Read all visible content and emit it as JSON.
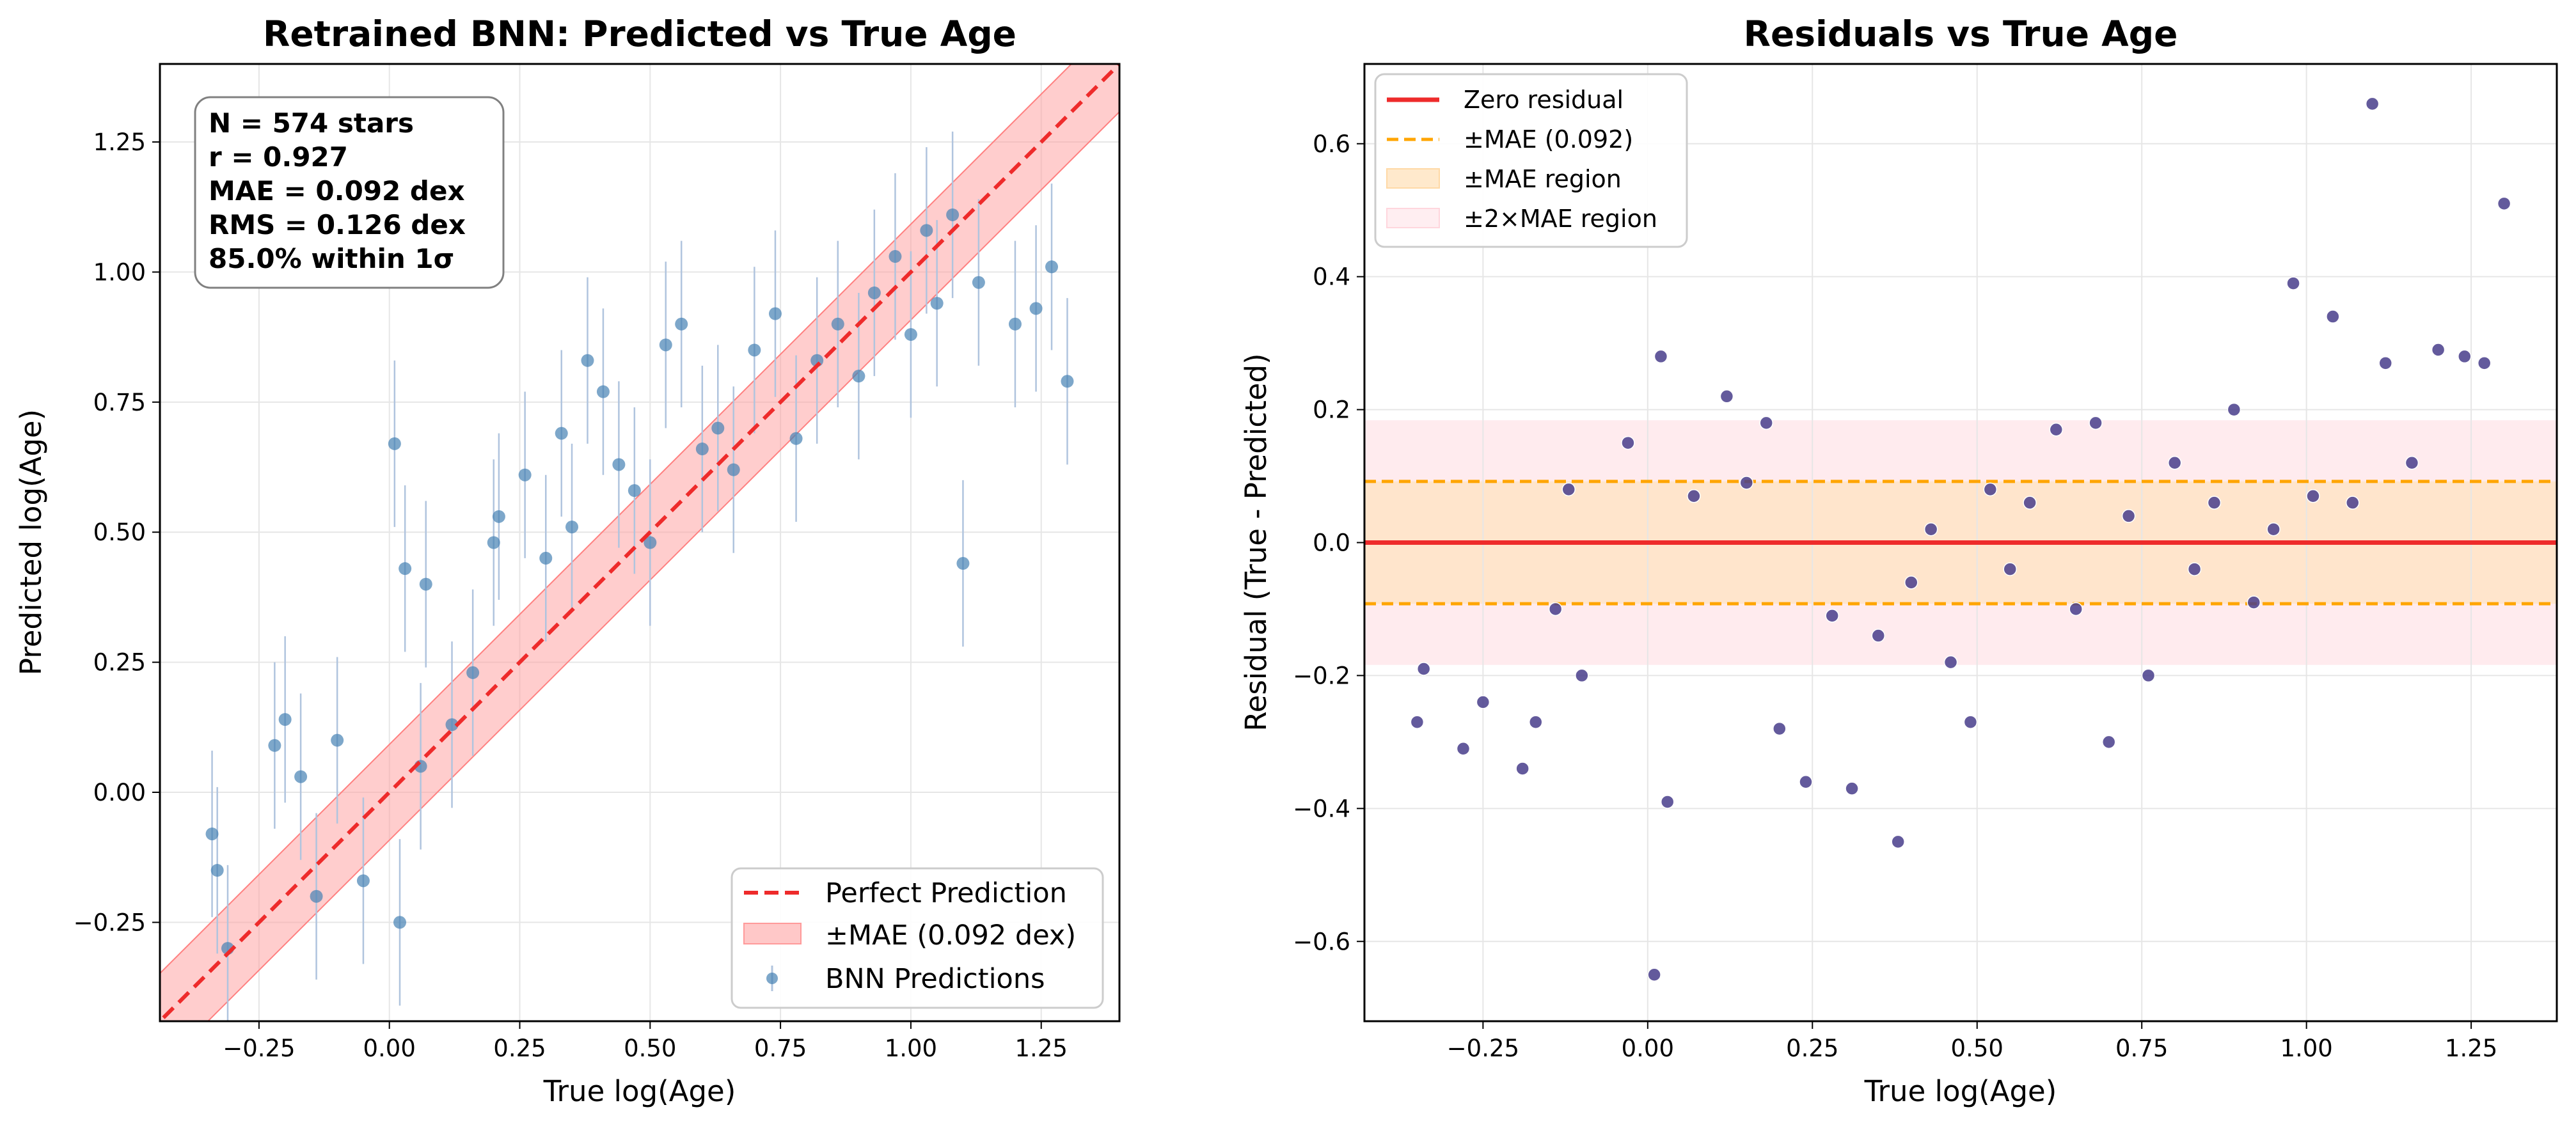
{
  "chart_data": [
    {
      "type": "scatter",
      "title": "Retrained BNN: Predicted vs True Age",
      "xlabel": "True log(Age)",
      "ylabel": "Predicted log(Age)",
      "xlim": [
        -0.44,
        1.4
      ],
      "ylim": [
        -0.44,
        1.4
      ],
      "x_ticks": [
        -0.25,
        0.0,
        0.25,
        0.5,
        0.75,
        1.0,
        1.25
      ],
      "x_tick_labels": [
        "−0.25",
        "0.00",
        "0.25",
        "0.50",
        "0.75",
        "1.00",
        "1.25"
      ],
      "y_ticks": [
        -0.25,
        0.0,
        0.25,
        0.5,
        0.75,
        1.0,
        1.25
      ],
      "y_tick_labels": [
        "−0.25",
        "0.00",
        "0.25",
        "0.50",
        "0.75",
        "1.00",
        "1.25"
      ],
      "grid": true,
      "stats_box": [
        "N = 574 stars",
        "r = 0.927",
        "MAE = 0.092 dex",
        "RMS = 0.126 dex",
        "85.0% within 1σ"
      ],
      "mae": 0.092,
      "legend_position": "lower-right",
      "legend": [
        {
          "label": "Perfect Prediction",
          "style": "dashed-line",
          "color": "#ee2b2b"
        },
        {
          "label": "±MAE (0.092 dex)",
          "style": "band",
          "color": "#ffb3b3"
        },
        {
          "label": "BNN Predictions",
          "style": "marker-errorbar",
          "color": "#4682b4"
        }
      ],
      "point_color": "#4682b4",
      "errorbar_color": "#b0c4de",
      "sample_points": [
        {
          "x": -0.34,
          "y": -0.08
        },
        {
          "x": -0.33,
          "y": -0.15
        },
        {
          "x": -0.31,
          "y": -0.3
        },
        {
          "x": -0.22,
          "y": 0.09
        },
        {
          "x": -0.2,
          "y": 0.14
        },
        {
          "x": -0.17,
          "y": 0.03
        },
        {
          "x": -0.14,
          "y": -0.2
        },
        {
          "x": -0.1,
          "y": 0.1
        },
        {
          "x": -0.05,
          "y": -0.17
        },
        {
          "x": 0.01,
          "y": 0.67
        },
        {
          "x": 0.03,
          "y": 0.43
        },
        {
          "x": 0.07,
          "y": 0.4
        },
        {
          "x": 0.02,
          "y": -0.25
        },
        {
          "x": 0.06,
          "y": 0.05
        },
        {
          "x": 0.12,
          "y": 0.13
        },
        {
          "x": 0.16,
          "y": 0.23
        },
        {
          "x": 0.2,
          "y": 0.48
        },
        {
          "x": 0.21,
          "y": 0.53
        },
        {
          "x": 0.26,
          "y": 0.61
        },
        {
          "x": 0.3,
          "y": 0.45
        },
        {
          "x": 0.33,
          "y": 0.69
        },
        {
          "x": 0.35,
          "y": 0.51
        },
        {
          "x": 0.38,
          "y": 0.83
        },
        {
          "x": 0.41,
          "y": 0.77
        },
        {
          "x": 0.44,
          "y": 0.63
        },
        {
          "x": 0.47,
          "y": 0.58
        },
        {
          "x": 0.5,
          "y": 0.48
        },
        {
          "x": 0.53,
          "y": 0.86
        },
        {
          "x": 0.56,
          "y": 0.9
        },
        {
          "x": 0.6,
          "y": 0.66
        },
        {
          "x": 0.63,
          "y": 0.7
        },
        {
          "x": 0.66,
          "y": 0.62
        },
        {
          "x": 0.7,
          "y": 0.85
        },
        {
          "x": 0.74,
          "y": 0.92
        },
        {
          "x": 0.78,
          "y": 0.68
        },
        {
          "x": 0.82,
          "y": 0.83
        },
        {
          "x": 0.86,
          "y": 0.9
        },
        {
          "x": 0.9,
          "y": 0.8
        },
        {
          "x": 0.93,
          "y": 0.96
        },
        {
          "x": 0.97,
          "y": 1.03
        },
        {
          "x": 1.0,
          "y": 0.88
        },
        {
          "x": 1.03,
          "y": 1.08
        },
        {
          "x": 1.05,
          "y": 0.94
        },
        {
          "x": 1.08,
          "y": 1.11
        },
        {
          "x": 1.1,
          "y": 0.44
        },
        {
          "x": 1.13,
          "y": 0.98
        },
        {
          "x": 1.2,
          "y": 0.9
        },
        {
          "x": 1.24,
          "y": 0.93
        },
        {
          "x": 1.27,
          "y": 1.01
        },
        {
          "x": 1.3,
          "y": 0.79
        }
      ]
    },
    {
      "type": "scatter",
      "title": "Residuals vs True Age",
      "xlabel": "True log(Age)",
      "ylabel": "Residual (True - Predicted)",
      "xlim": [
        -0.43,
        1.38
      ],
      "ylim": [
        -0.72,
        0.72
      ],
      "x_ticks": [
        -0.25,
        0.0,
        0.25,
        0.5,
        0.75,
        1.0,
        1.25
      ],
      "x_tick_labels": [
        "−0.25",
        "0.00",
        "0.25",
        "0.50",
        "0.75",
        "1.00",
        "1.25"
      ],
      "y_ticks": [
        -0.6,
        -0.4,
        -0.2,
        0.0,
        0.2,
        0.4,
        0.6
      ],
      "y_tick_labels": [
        "−0.6",
        "−0.4",
        "−0.2",
        "0.0",
        "0.2",
        "0.4",
        "0.6"
      ],
      "grid": true,
      "mae": 0.092,
      "legend_position": "top-left",
      "legend": [
        {
          "label": "Zero residual",
          "style": "solid-line",
          "color": "#ee2b2b"
        },
        {
          "label": "±MAE (0.092)",
          "style": "dashed-line",
          "color": "#ffa500"
        },
        {
          "label": "±MAE region",
          "style": "band",
          "color": "#ffe3c0"
        },
        {
          "label": "±2×MAE region",
          "style": "band",
          "color": "#ffe6ea"
        }
      ],
      "point_color": "#483d8b",
      "sample_points": [
        {
          "x": -0.35,
          "y": -0.27
        },
        {
          "x": -0.34,
          "y": -0.19
        },
        {
          "x": -0.28,
          "y": -0.31
        },
        {
          "x": -0.25,
          "y": -0.24
        },
        {
          "x": -0.19,
          "y": -0.34
        },
        {
          "x": -0.17,
          "y": -0.27
        },
        {
          "x": -0.14,
          "y": -0.1
        },
        {
          "x": -0.12,
          "y": 0.08
        },
        {
          "x": -0.1,
          "y": -0.2
        },
        {
          "x": -0.03,
          "y": 0.15
        },
        {
          "x": 0.02,
          "y": 0.28
        },
        {
          "x": 0.01,
          "y": -0.65
        },
        {
          "x": 0.03,
          "y": -0.39
        },
        {
          "x": 0.07,
          "y": 0.07
        },
        {
          "x": 0.12,
          "y": 0.22
        },
        {
          "x": 0.15,
          "y": 0.09
        },
        {
          "x": 0.18,
          "y": 0.18
        },
        {
          "x": 0.2,
          "y": -0.28
        },
        {
          "x": 0.24,
          "y": -0.36
        },
        {
          "x": 0.28,
          "y": -0.11
        },
        {
          "x": 0.31,
          "y": -0.37
        },
        {
          "x": 0.35,
          "y": -0.14
        },
        {
          "x": 0.38,
          "y": -0.45
        },
        {
          "x": 0.4,
          "y": -0.06
        },
        {
          "x": 0.43,
          "y": 0.02
        },
        {
          "x": 0.46,
          "y": -0.18
        },
        {
          "x": 0.49,
          "y": -0.27
        },
        {
          "x": 0.52,
          "y": 0.08
        },
        {
          "x": 0.55,
          "y": -0.04
        },
        {
          "x": 0.58,
          "y": 0.06
        },
        {
          "x": 0.62,
          "y": 0.17
        },
        {
          "x": 0.65,
          "y": -0.1
        },
        {
          "x": 0.68,
          "y": 0.18
        },
        {
          "x": 0.7,
          "y": -0.3
        },
        {
          "x": 0.73,
          "y": 0.04
        },
        {
          "x": 0.76,
          "y": -0.2
        },
        {
          "x": 0.8,
          "y": 0.12
        },
        {
          "x": 0.83,
          "y": -0.04
        },
        {
          "x": 0.86,
          "y": 0.06
        },
        {
          "x": 0.89,
          "y": 0.2
        },
        {
          "x": 0.92,
          "y": -0.09
        },
        {
          "x": 0.95,
          "y": 0.02
        },
        {
          "x": 0.98,
          "y": 0.39
        },
        {
          "x": 1.01,
          "y": 0.07
        },
        {
          "x": 1.04,
          "y": 0.34
        },
        {
          "x": 1.07,
          "y": 0.06
        },
        {
          "x": 1.1,
          "y": 0.66
        },
        {
          "x": 1.12,
          "y": 0.27
        },
        {
          "x": 1.16,
          "y": 0.12
        },
        {
          "x": 1.2,
          "y": 0.29
        },
        {
          "x": 1.24,
          "y": 0.28
        },
        {
          "x": 1.27,
          "y": 0.27
        },
        {
          "x": 1.3,
          "y": 0.51
        }
      ]
    }
  ]
}
